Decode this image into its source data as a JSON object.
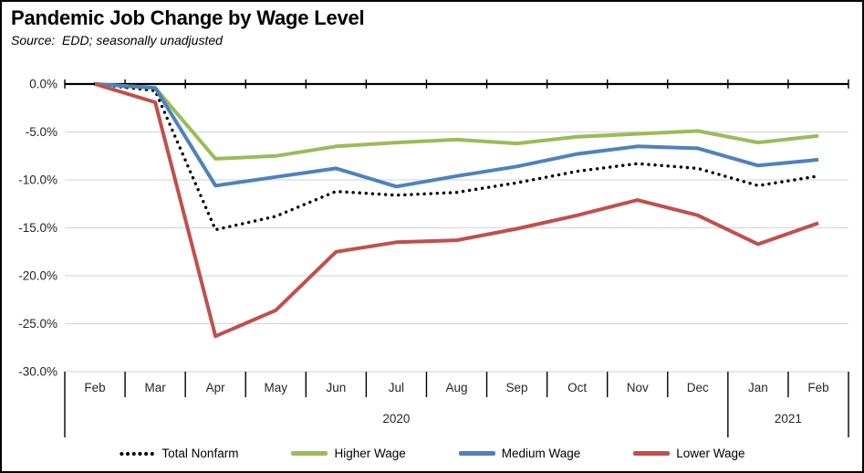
{
  "header": {
    "title": "Pandemic Job Change by Wage Level",
    "subtitle": "Source:  EDD; seasonally unadjusted"
  },
  "chart_data": {
    "type": "line",
    "title": "Pandemic Job Change by Wage Level",
    "source_note": "Source:  EDD; seasonally unadjusted",
    "categories": [
      "Feb",
      "Mar",
      "Apr",
      "May",
      "Jun",
      "Jul",
      "Aug",
      "Sep",
      "Oct",
      "Nov",
      "Dec",
      "Jan",
      "Feb"
    ],
    "x_year_groups": [
      {
        "label": "2020",
        "from_index": 0,
        "to_index": 10
      },
      {
        "label": "2021",
        "from_index": 11,
        "to_index": 12
      }
    ],
    "y_axis": {
      "unit": "%",
      "min": -30,
      "max": 0,
      "tick_step": 5,
      "tick_labels": [
        "0.0%",
        "-5.0%",
        "-10.0%",
        "-15.0%",
        "-20.0%",
        "-25.0%",
        "-30.0%"
      ]
    },
    "grid": "horizontal",
    "legend_position": "bottom",
    "series": [
      {
        "name": "Total Nonfarm",
        "color": "#000000",
        "style": "dotted",
        "values": [
          0.0,
          -0.7,
          -15.2,
          -13.8,
          -11.2,
          -11.6,
          -11.3,
          -10.3,
          -9.1,
          -8.3,
          -8.8,
          -10.6,
          -9.6
        ]
      },
      {
        "name": "Higher Wage",
        "color": "#9BBB59",
        "style": "solid",
        "values": [
          0.0,
          -0.4,
          -7.8,
          -7.5,
          -6.5,
          -6.1,
          -5.8,
          -6.2,
          -5.5,
          -5.2,
          -4.9,
          -6.1,
          -5.4
        ]
      },
      {
        "name": "Medium Wage",
        "color": "#4F81BD",
        "style": "solid",
        "values": [
          0.0,
          -0.4,
          -10.6,
          -9.7,
          -8.8,
          -10.7,
          -9.6,
          -8.6,
          -7.3,
          -6.5,
          -6.7,
          -8.5,
          -7.9
        ]
      },
      {
        "name": "Lower Wage",
        "color": "#C0504D",
        "style": "solid",
        "values": [
          0.0,
          -1.9,
          -26.3,
          -23.6,
          -17.5,
          -16.5,
          -16.3,
          -15.1,
          -13.7,
          -12.1,
          -13.7,
          -16.7,
          -14.5
        ]
      }
    ]
  },
  "colors": {
    "gridline": "#D9D9D9",
    "axis": "#000000",
    "axis_text": "#262626",
    "border": "#000000",
    "background": "#FFFFFF"
  }
}
